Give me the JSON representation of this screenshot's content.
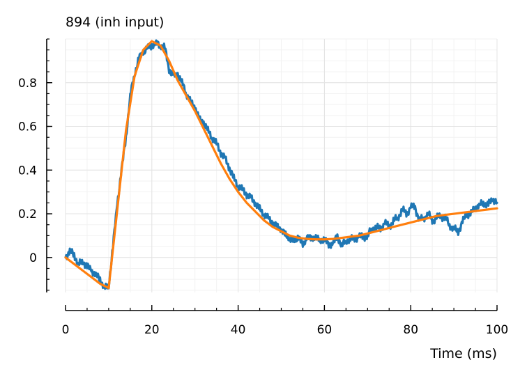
{
  "chart_data": {
    "type": "line",
    "title": "894 (inh input)",
    "xlabel": "Time (ms)",
    "ylabel": "",
    "xlim": [
      0,
      100
    ],
    "ylim": [
      -0.16,
      1.0
    ],
    "xticks": [
      0,
      20,
      40,
      60,
      80,
      100
    ],
    "xtick_labels": [
      "0",
      "20",
      "40",
      "60",
      "80",
      "100"
    ],
    "yticks": [
      0,
      0.2,
      0.4,
      0.6,
      0.8
    ],
    "ytick_labels": [
      "0",
      "0.2",
      "0.4",
      "0.6",
      "0.8"
    ],
    "grid": true,
    "legend": "none",
    "series": [
      {
        "color": "#1f77b4",
        "style": "noisy",
        "x": [
          0,
          1,
          2,
          3,
          4,
          5,
          6,
          7,
          8,
          9,
          10,
          11,
          12,
          13,
          14,
          15,
          16,
          17,
          18,
          19,
          20,
          21,
          22,
          23,
          24,
          25,
          26,
          27,
          28,
          29,
          30,
          31,
          32,
          33,
          34,
          35,
          36,
          37,
          38,
          39,
          40,
          41,
          42,
          43,
          44,
          45,
          46,
          47,
          48,
          49,
          50,
          51,
          52,
          53,
          54,
          55,
          56,
          57,
          58,
          59,
          60,
          61,
          62,
          63,
          64,
          65,
          66,
          67,
          68,
          69,
          70,
          71,
          72,
          73,
          74,
          75,
          76,
          77,
          78,
          79,
          80,
          81,
          82,
          83,
          84,
          85,
          86,
          87,
          88,
          89,
          90,
          91,
          92,
          93,
          94,
          95,
          96,
          97,
          98,
          99,
          100
        ],
        "y": [
          0.0,
          0.03,
          0.01,
          -0.03,
          -0.02,
          -0.04,
          -0.06,
          -0.08,
          -0.1,
          -0.14,
          -0.13,
          0.05,
          0.25,
          0.4,
          0.55,
          0.74,
          0.84,
          0.91,
          0.94,
          0.96,
          0.97,
          0.98,
          0.97,
          0.96,
          0.86,
          0.83,
          0.84,
          0.8,
          0.75,
          0.71,
          0.69,
          0.63,
          0.62,
          0.58,
          0.55,
          0.52,
          0.48,
          0.45,
          0.41,
          0.36,
          0.33,
          0.31,
          0.29,
          0.27,
          0.25,
          0.22,
          0.2,
          0.18,
          0.16,
          0.14,
          0.13,
          0.1,
          0.09,
          0.07,
          0.1,
          0.05,
          0.1,
          0.08,
          0.1,
          0.07,
          0.09,
          0.05,
          0.07,
          0.09,
          0.06,
          0.07,
          0.09,
          0.08,
          0.1,
          0.09,
          0.1,
          0.13,
          0.14,
          0.13,
          0.16,
          0.14,
          0.17,
          0.18,
          0.22,
          0.2,
          0.23,
          0.23,
          0.17,
          0.18,
          0.2,
          0.17,
          0.18,
          0.19,
          0.18,
          0.15,
          0.13,
          0.12,
          0.16,
          0.2,
          0.2,
          0.23,
          0.24,
          0.25,
          0.24,
          0.27,
          0.25
        ]
      },
      {
        "color": "#ff7f0e",
        "style": "smooth",
        "x": [
          0,
          2,
          4,
          6,
          8,
          10,
          12,
          14,
          16,
          18,
          20,
          22,
          24,
          26,
          28,
          30,
          32,
          34,
          36,
          38,
          40,
          42,
          44,
          46,
          48,
          50,
          52,
          54,
          56,
          58,
          60,
          62,
          64,
          66,
          68,
          70,
          72,
          74,
          76,
          78,
          80,
          82,
          84,
          86,
          88,
          90,
          92,
          94,
          96,
          98,
          100
        ],
        "y": [
          0.0,
          -0.03,
          -0.06,
          -0.09,
          -0.12,
          -0.14,
          0.22,
          0.58,
          0.83,
          0.95,
          0.99,
          0.97,
          0.9,
          0.81,
          0.74,
          0.67,
          0.59,
          0.51,
          0.43,
          0.36,
          0.3,
          0.25,
          0.21,
          0.17,
          0.14,
          0.12,
          0.1,
          0.09,
          0.085,
          0.083,
          0.083,
          0.085,
          0.09,
          0.095,
          0.1,
          0.11,
          0.12,
          0.13,
          0.14,
          0.15,
          0.16,
          0.17,
          0.18,
          0.19,
          0.195,
          0.2,
          0.205,
          0.21,
          0.215,
          0.22,
          0.225
        ]
      }
    ]
  }
}
